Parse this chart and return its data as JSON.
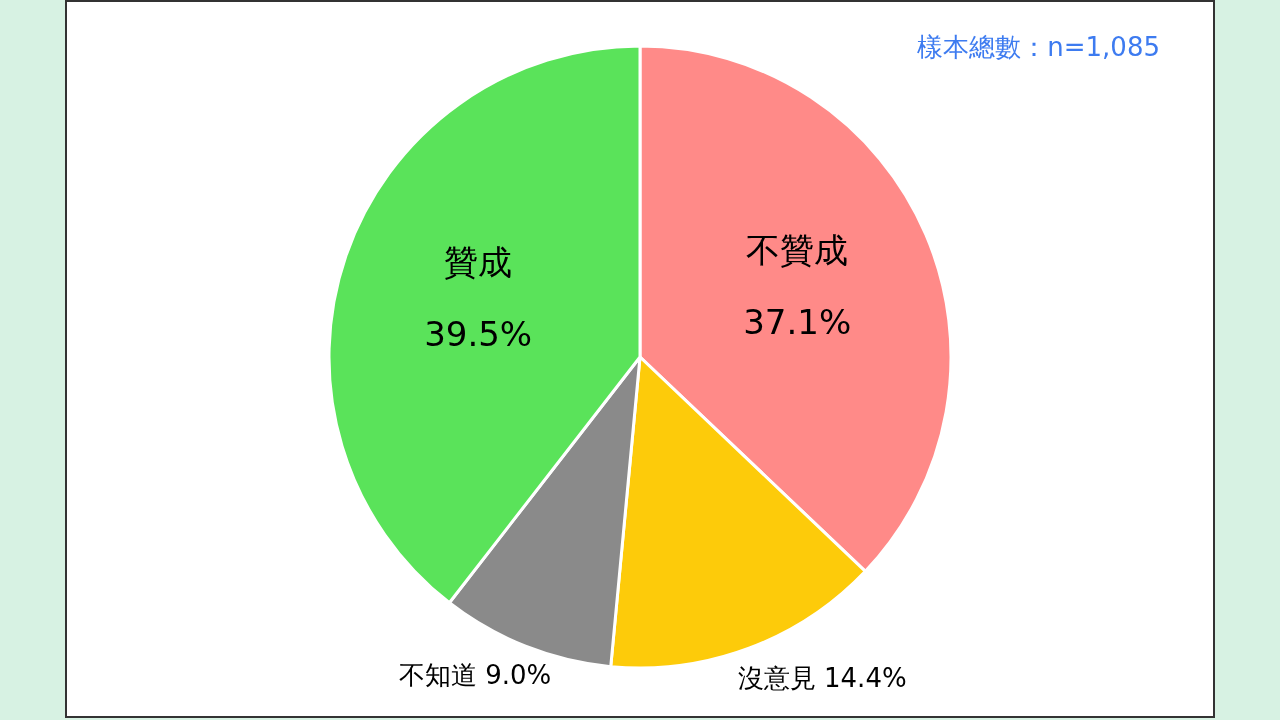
{
  "chart_data": {
    "type": "pie",
    "categories": [
      "不贊成",
      "沒意見",
      "不知道",
      "贊成"
    ],
    "values": [
      37.1,
      14.4,
      9.0,
      39.5
    ],
    "value_labels": [
      "37.1%",
      "14.4%",
      "9.0%",
      "39.5%"
    ],
    "colors": [
      "#ff8a88",
      "#fdcb0a",
      "#8a8a8a",
      "#5ae35a"
    ],
    "annotations": [
      "樣本總數：n=1,085"
    ]
  }
}
